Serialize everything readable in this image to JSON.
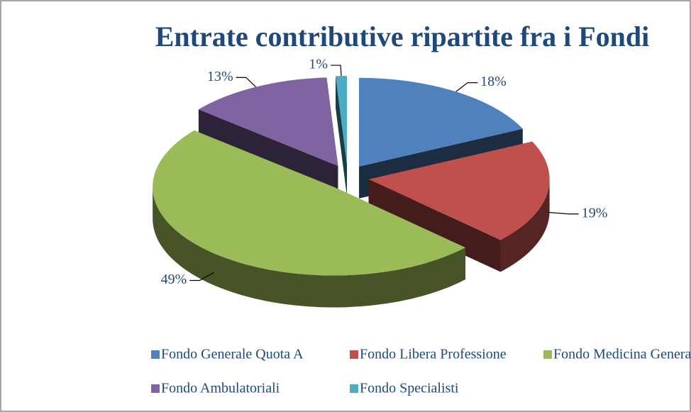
{
  "chart_data": {
    "type": "pie",
    "title": "Entrate contributive ripartite fra i Fondi",
    "categories": [
      "Fondo Generale Quota A",
      "Fondo Libera Professione",
      "Fondo Medicina Generale",
      "Fondo Ambulatoriali",
      "Fondo Specialisti"
    ],
    "values": [
      18,
      19,
      49,
      13,
      1
    ],
    "value_labels": [
      "18%",
      "19%",
      "49%",
      "13%",
      "1%"
    ],
    "colors": [
      "#4f81bd",
      "#c0504d",
      "#9bbb59",
      "#8064a2",
      "#4bacc6"
    ],
    "legend": "bottom"
  }
}
